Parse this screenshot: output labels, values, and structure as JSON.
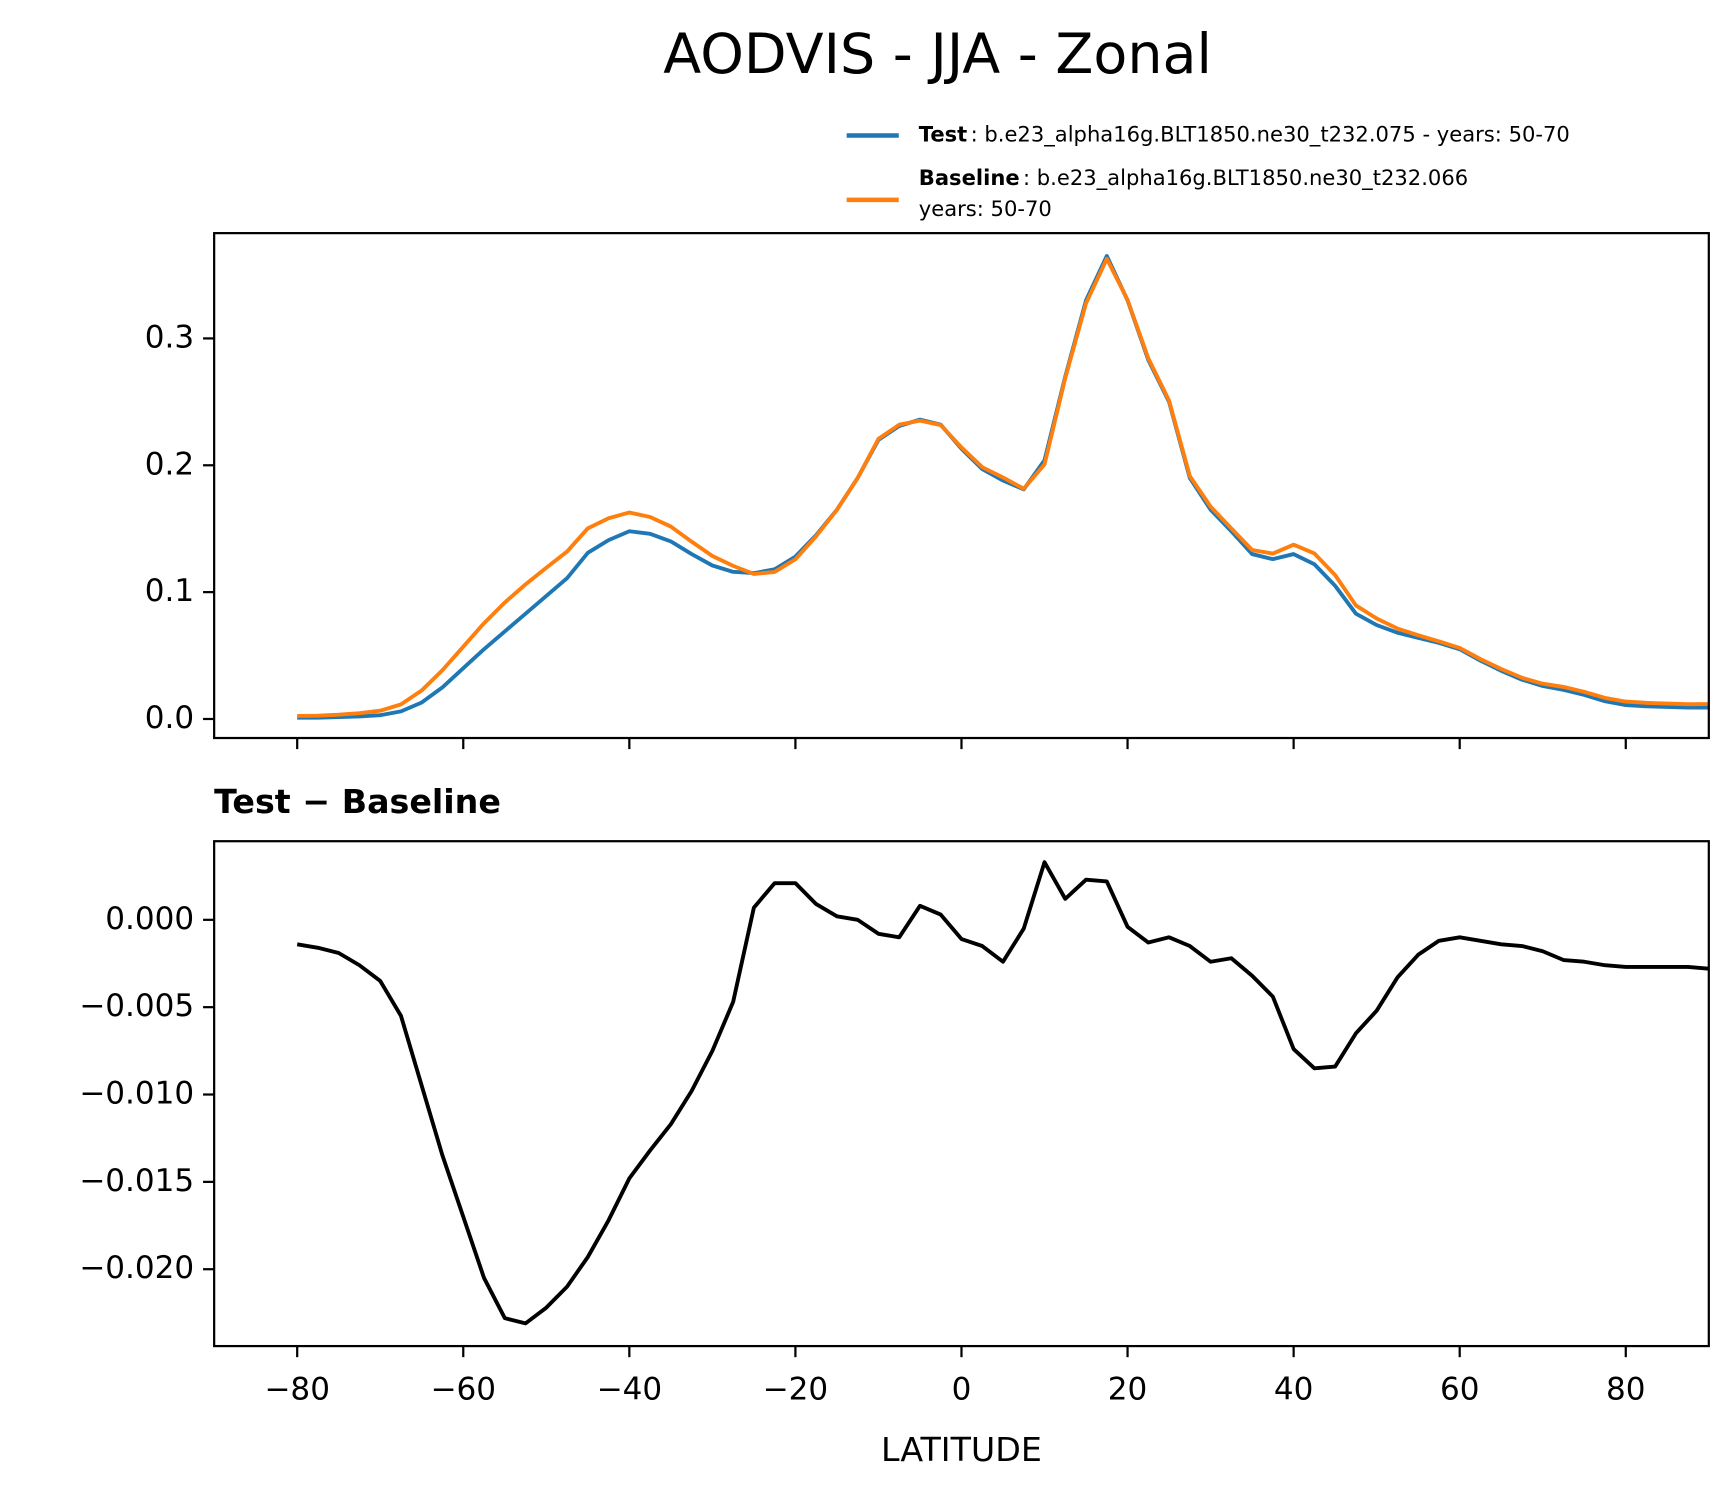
{
  "title": "AODVIS - JJA - Zonal",
  "chart_data": [
    {
      "type": "line",
      "x": [
        -80,
        -77.5,
        -75,
        -72.5,
        -70,
        -67.5,
        -65,
        -62.5,
        -60,
        -57.5,
        -55,
        -52.5,
        -50,
        -47.5,
        -45,
        -42.5,
        -40,
        -37.5,
        -35,
        -32.5,
        -30,
        -27.5,
        -25,
        -22.5,
        -20,
        -17.5,
        -15,
        -12.5,
        -10,
        -7.5,
        -5,
        -2.5,
        0,
        2.5,
        5,
        7.5,
        10,
        12.5,
        15,
        17.5,
        20,
        22.5,
        25,
        27.5,
        30,
        32.5,
        35,
        37.5,
        40,
        42.5,
        45,
        47.5,
        50,
        52.5,
        55,
        57.5,
        60,
        62.5,
        65,
        67.5,
        70,
        72.5,
        75,
        77.5,
        80,
        82.5,
        85,
        87.5,
        90
      ],
      "series": [
        {
          "name": "Test",
          "description": [
            ": b.e23_alpha16g.BLT1850.ne30_t232.075 - years: 50-70"
          ],
          "color": "#1f77b4",
          "values": [
            0.001,
            0.001,
            0.0015,
            0.002,
            0.003,
            0.006,
            0.013,
            0.025,
            0.04,
            0.055,
            0.069,
            0.083,
            0.097,
            0.111,
            0.131,
            0.141,
            0.148,
            0.146,
            0.14,
            0.13,
            0.121,
            0.116,
            0.115,
            0.118,
            0.128,
            0.145,
            0.165,
            0.19,
            0.22,
            0.231,
            0.236,
            0.232,
            0.213,
            0.197,
            0.188,
            0.181,
            0.204,
            0.27,
            0.33,
            0.365,
            0.33,
            0.283,
            0.25,
            0.19,
            0.165,
            0.148,
            0.13,
            0.126,
            0.13,
            0.122,
            0.105,
            0.083,
            0.074,
            0.068,
            0.064,
            0.06,
            0.055,
            0.046,
            0.038,
            0.031,
            0.026,
            0.023,
            0.019,
            0.014,
            0.011,
            0.01,
            0.0095,
            0.009,
            0.009
          ]
        },
        {
          "name": "Baseline",
          "description": [
            ": b.e23_alpha16g.BLT1850.ne30_t232.066",
            "years: 50-70"
          ],
          "color": "#ff7f0e",
          "values": [
            0.0024,
            0.0026,
            0.0034,
            0.0046,
            0.0065,
            0.0115,
            0.0225,
            0.0385,
            0.057,
            0.0755,
            0.0918,
            0.1061,
            0.1192,
            0.132,
            0.1503,
            0.1582,
            0.1628,
            0.1592,
            0.1517,
            0.1398,
            0.1285,
            0.1207,
            0.1143,
            0.1159,
            0.1259,
            0.1441,
            0.1648,
            0.19,
            0.2208,
            0.232,
            0.2352,
            0.2317,
            0.2141,
            0.1985,
            0.1904,
            0.1815,
            0.2007,
            0.2688,
            0.3277,
            0.3628,
            0.3304,
            0.2843,
            0.251,
            0.1915,
            0.1674,
            0.1502,
            0.1332,
            0.1304,
            0.1374,
            0.1305,
            0.1134,
            0.0895,
            0.0792,
            0.0713,
            0.066,
            0.0612,
            0.056,
            0.0472,
            0.0394,
            0.0325,
            0.0278,
            0.0253,
            0.0214,
            0.0166,
            0.0137,
            0.0127,
            0.0122,
            0.0117,
            0.0118
          ]
        }
      ],
      "xlim": [
        -90,
        90
      ],
      "xticks": [
        -80,
        -60,
        -40,
        -20,
        0,
        20,
        40,
        60,
        80
      ],
      "ylim": [
        -0.015,
        0.383
      ],
      "yticks": [
        {
          "value": 0,
          "label": "0.0"
        },
        0.1,
        0.2,
        0.3
      ]
    },
    {
      "type": "line",
      "title": "Test − Baseline",
      "xlabel": "LATITUDE",
      "x": [
        -80,
        -77.5,
        -75,
        -72.5,
        -70,
        -67.5,
        -65,
        -62.5,
        -60,
        -57.5,
        -55,
        -52.5,
        -50,
        -47.5,
        -45,
        -42.5,
        -40,
        -37.5,
        -35,
        -32.5,
        -30,
        -27.5,
        -25,
        -22.5,
        -20,
        -17.5,
        -15,
        -12.5,
        -10,
        -7.5,
        -5,
        -2.5,
        0,
        2.5,
        5,
        7.5,
        10,
        12.5,
        15,
        17.5,
        20,
        22.5,
        25,
        27.5,
        30,
        32.5,
        35,
        37.5,
        40,
        42.5,
        45,
        47.5,
        50,
        52.5,
        55,
        57.5,
        60,
        62.5,
        65,
        67.5,
        70,
        72.5,
        75,
        77.5,
        80,
        82.5,
        85,
        87.5,
        90
      ],
      "series": [
        {
          "color": "#000000",
          "values": [
            -0.0014,
            -0.0016,
            -0.0019,
            -0.0026,
            -0.0035,
            -0.0055,
            -0.0095,
            -0.0135,
            -0.017,
            -0.0205,
            -0.0228,
            -0.0231,
            -0.0222,
            -0.021,
            -0.0193,
            -0.0172,
            -0.0148,
            -0.0132,
            -0.0117,
            -0.0098,
            -0.0075,
            -0.0047,
            0.0007,
            0.0021,
            0.0021,
            0.0009,
            0.0002,
            0.0,
            -0.0008,
            -0.001,
            0.0008,
            0.0003,
            -0.0011,
            -0.0015,
            -0.0024,
            -0.0005,
            0.0033,
            0.0012,
            0.0023,
            0.0022,
            -0.0004,
            -0.0013,
            -0.001,
            -0.0015,
            -0.0024,
            -0.0022,
            -0.0032,
            -0.0044,
            -0.0074,
            -0.0085,
            -0.0084,
            -0.0065,
            -0.0052,
            -0.0033,
            -0.002,
            -0.0012,
            -0.001,
            -0.0012,
            -0.0014,
            -0.0015,
            -0.0018,
            -0.0023,
            -0.0024,
            -0.0026,
            -0.0027,
            -0.0027,
            -0.0027,
            -0.0027,
            -0.0028
          ]
        }
      ],
      "xlim": [
        -90,
        90
      ],
      "xticks": [
        {
          "value": -80,
          "label": "−80"
        },
        {
          "value": -60,
          "label": "−60"
        },
        {
          "value": -40,
          "label": "−40"
        },
        {
          "value": -20,
          "label": "−20"
        },
        0,
        20,
        40,
        60,
        80
      ],
      "ylim": [
        -0.0244,
        0.0045
      ],
      "yticks": [
        {
          "value": 0,
          "label": "0.000"
        },
        {
          "value": -0.005,
          "label": "−0.005"
        },
        {
          "value": -0.01,
          "label": "−0.010"
        },
        {
          "value": -0.015,
          "label": "−0.015"
        },
        {
          "value": -0.02,
          "label": "−0.020"
        }
      ]
    }
  ]
}
